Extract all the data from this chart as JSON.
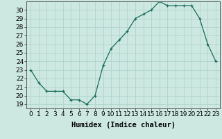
{
  "x": [
    0,
    1,
    2,
    3,
    4,
    5,
    6,
    7,
    8,
    9,
    10,
    11,
    12,
    13,
    14,
    15,
    16,
    17,
    18,
    19,
    20,
    21,
    22,
    23
  ],
  "y": [
    23,
    21.5,
    20.5,
    20.5,
    20.5,
    19.5,
    19.5,
    19,
    20,
    23.5,
    25.5,
    26.5,
    27.5,
    29,
    29.5,
    30,
    31,
    30.5,
    30.5,
    30.5,
    30.5,
    29,
    26,
    24
  ],
  "line_color": "#1a6b5a",
  "marker": "+",
  "bg_color": "#cce8e0",
  "grid_color": "#b0d4cc",
  "xlabel": "Humidex (Indice chaleur)",
  "xlim": [
    -0.5,
    23.5
  ],
  "ylim": [
    18.5,
    31.0
  ],
  "yticks": [
    19,
    20,
    21,
    22,
    23,
    24,
    25,
    26,
    27,
    28,
    29,
    30
  ],
  "xticks": [
    0,
    1,
    2,
    3,
    4,
    5,
    6,
    7,
    8,
    9,
    10,
    11,
    12,
    13,
    14,
    15,
    16,
    17,
    18,
    19,
    20,
    21,
    22,
    23
  ],
  "xtick_labels": [
    "0",
    "1",
    "2",
    "3",
    "4",
    "5",
    "6",
    "7",
    "8",
    "9",
    "10",
    "11",
    "12",
    "13",
    "14",
    "15",
    "16",
    "17",
    "18",
    "19",
    "20",
    "21",
    "22",
    "23"
  ],
  "tick_fontsize": 6.5,
  "xlabel_fontsize": 7.5
}
